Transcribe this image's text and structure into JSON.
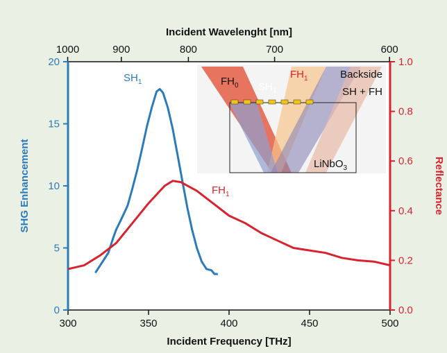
{
  "chart_data": {
    "type": "line",
    "x_label": "Incident Frequency [THz]",
    "x2_label": "Incident Wavelenght [nm]",
    "y_label": "SHG Enhancement",
    "y2_label": "Reflectance",
    "xlim": [
      300,
      500
    ],
    "xticks": [
      300,
      350,
      400,
      450,
      500
    ],
    "x2ticks": [
      1000,
      900,
      800,
      700,
      600
    ],
    "ylim": [
      0,
      20
    ],
    "yticks": [
      0,
      5,
      10,
      15,
      20
    ],
    "y2lim": [
      0,
      1
    ],
    "y2ticks": [
      {
        "value": 0,
        "label": "0.0"
      },
      0.2,
      0.4,
      0.6,
      0.8,
      {
        "value": 1,
        "label": "1.0"
      }
    ],
    "series": [
      {
        "name": "SH",
        "name_sub": "1",
        "color": "#2b7bba",
        "axis": "y",
        "x": [
          317,
          320,
          325,
          328,
          330,
          333,
          337,
          340,
          343,
          346,
          349,
          352,
          355,
          357,
          359,
          362,
          365,
          368,
          371,
          374,
          377,
          380,
          383,
          386,
          389,
          391,
          393
        ],
        "values": [
          3.0,
          3.6,
          4.6,
          5.8,
          6.5,
          7.3,
          8.4,
          9.8,
          11.3,
          13.0,
          14.8,
          16.3,
          17.6,
          17.8,
          17.5,
          16.3,
          14.6,
          12.5,
          10.4,
          8.3,
          6.5,
          5.0,
          3.9,
          3.3,
          3.2,
          2.9,
          2.9
        ]
      },
      {
        "name": "FH",
        "name_sub": "1",
        "color": "#d8232f",
        "axis": "y2",
        "x": [
          300,
          310,
          320,
          330,
          340,
          350,
          360,
          365,
          370,
          380,
          390,
          400,
          410,
          420,
          430,
          440,
          450,
          460,
          470,
          480,
          490,
          500
        ],
        "values": [
          0.165,
          0.18,
          0.22,
          0.27,
          0.35,
          0.43,
          0.5,
          0.52,
          0.515,
          0.48,
          0.43,
          0.38,
          0.35,
          0.31,
          0.28,
          0.25,
          0.24,
          0.23,
          0.21,
          0.2,
          0.195,
          0.18
        ]
      }
    ],
    "annotations": [
      {
        "text": "FH",
        "sub": "0"
      },
      {
        "text": "SH",
        "sub": "1"
      },
      {
        "text": "FH",
        "sub": "1"
      },
      {
        "text": "Backside"
      },
      {
        "text": "SH + FH"
      },
      {
        "text": "LiNbO",
        "sub": "3"
      }
    ]
  }
}
